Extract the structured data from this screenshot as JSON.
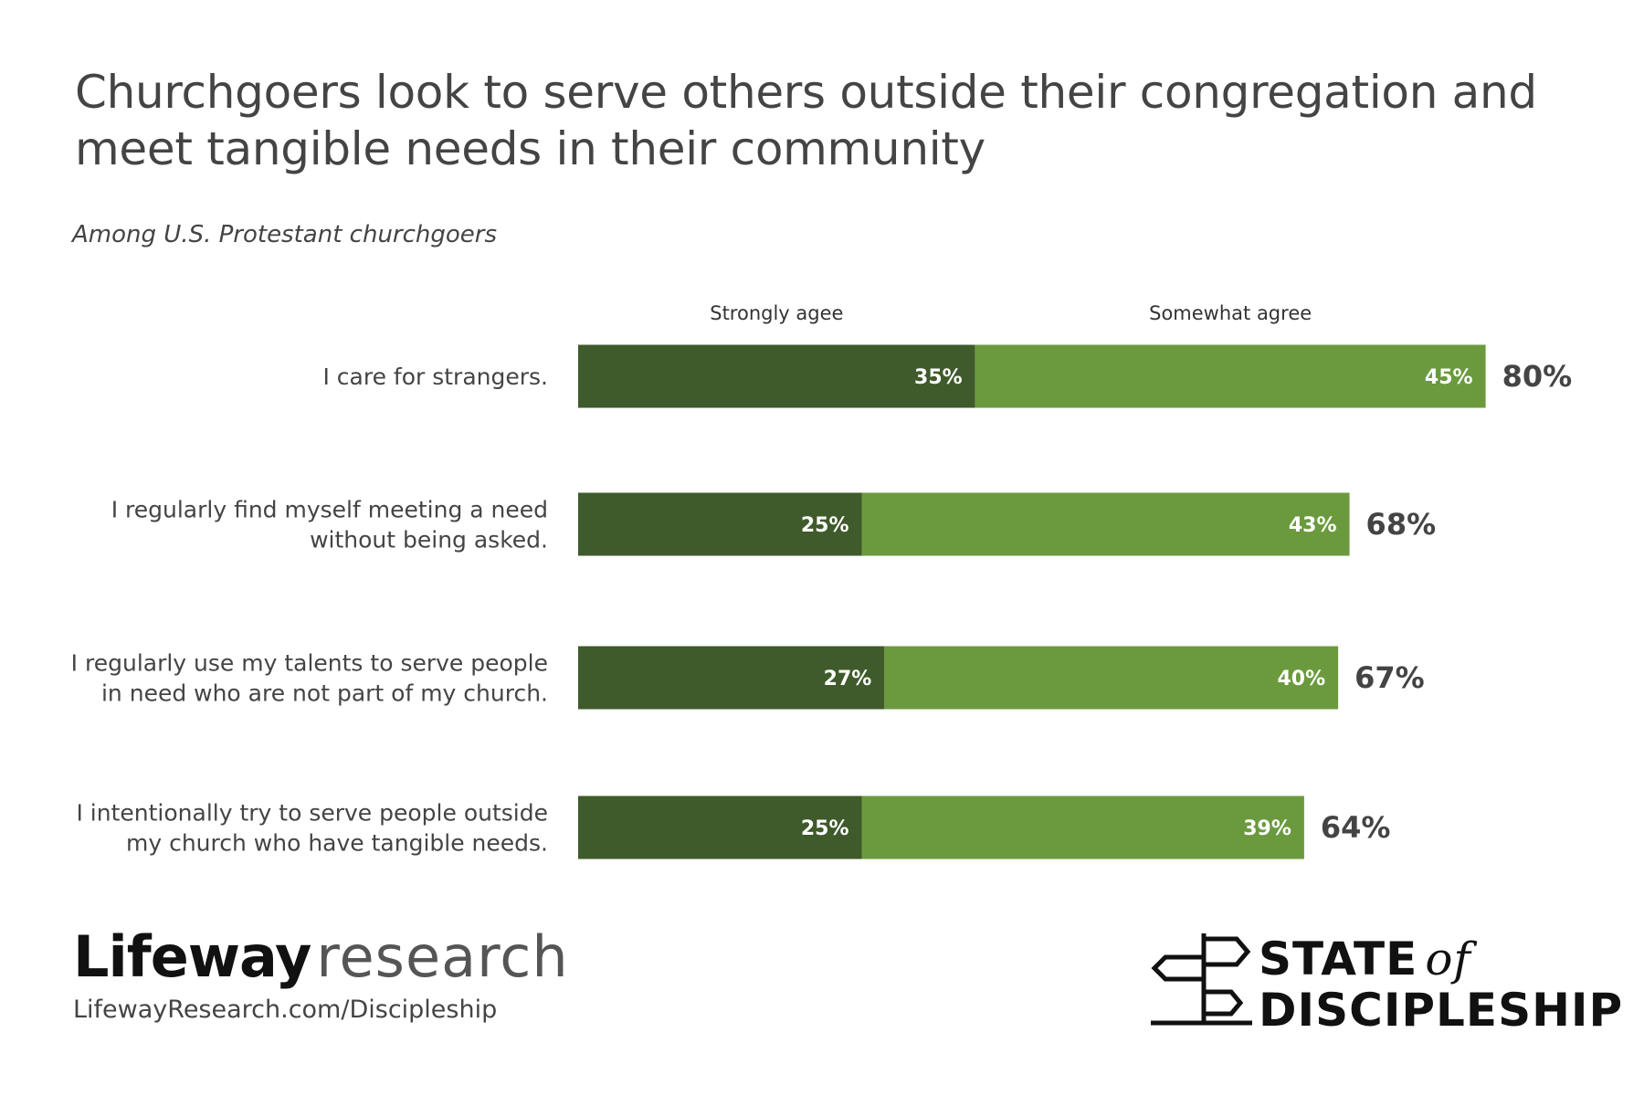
{
  "chart_data": {
    "type": "bar",
    "orientation": "horizontal",
    "stacked": true,
    "title": "Churchgoers look to serve others outside their congregation and meet tangible needs in their community",
    "subtitle": "Among U.S. Protestant churchgoers",
    "categories": [
      [
        "I care for strangers."
      ],
      [
        "I regularly find myself meeting a need",
        "without being asked."
      ],
      [
        "I regularly use my talents to serve people",
        "in need who are not part of my church."
      ],
      [
        "I intentionally try to serve people outside",
        "my church who have tangible needs."
      ]
    ],
    "series": [
      {
        "name": "Strongly agee",
        "values": [
          35,
          25,
          27,
          25
        ],
        "color": "#3f5a2b"
      },
      {
        "name": "Somewhat agree",
        "values": [
          45,
          43,
          40,
          39
        ],
        "color": "#6a9a3d"
      }
    ],
    "totals": [
      80,
      68,
      67,
      64
    ],
    "value_suffix": "%",
    "xlim": [
      0,
      80
    ],
    "grid": false,
    "legend_position": "top"
  },
  "branding": {
    "logo_bold": "Lifeway",
    "logo_light": "research",
    "url": "LifewayResearch.com/Discipleship",
    "sod_line1": "STATE",
    "sod_of": "of",
    "sod_line2": "DISCIPLESHIP"
  }
}
